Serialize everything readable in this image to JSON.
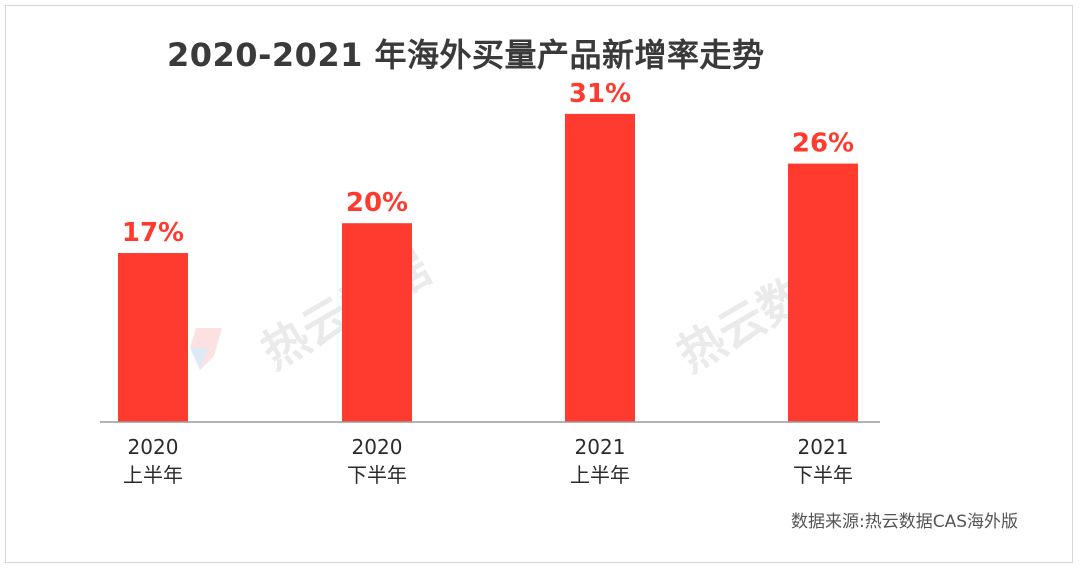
{
  "title": "2020-2021 年海外买量产品新增率走势",
  "source": "数据来源:热云数据CAS海外版",
  "watermark": "热云数据",
  "colors": {
    "bar": "#ff3b2f",
    "label": "#ff3b2f",
    "axis": "#9a9a9a",
    "category_text": "#2b2b2b"
  },
  "chart_data": {
    "type": "bar",
    "categories": [
      {
        "year": "2020",
        "half": "上半年"
      },
      {
        "year": "2020",
        "half": "下半年"
      },
      {
        "year": "2021",
        "half": "上半年"
      },
      {
        "year": "2021",
        "half": "下半年"
      }
    ],
    "values": [
      17,
      20,
      31,
      26
    ],
    "labels": [
      "17%",
      "20%",
      "31%",
      "26%"
    ],
    "ylim": [
      0,
      33
    ],
    "grid": false,
    "legend": "none"
  }
}
